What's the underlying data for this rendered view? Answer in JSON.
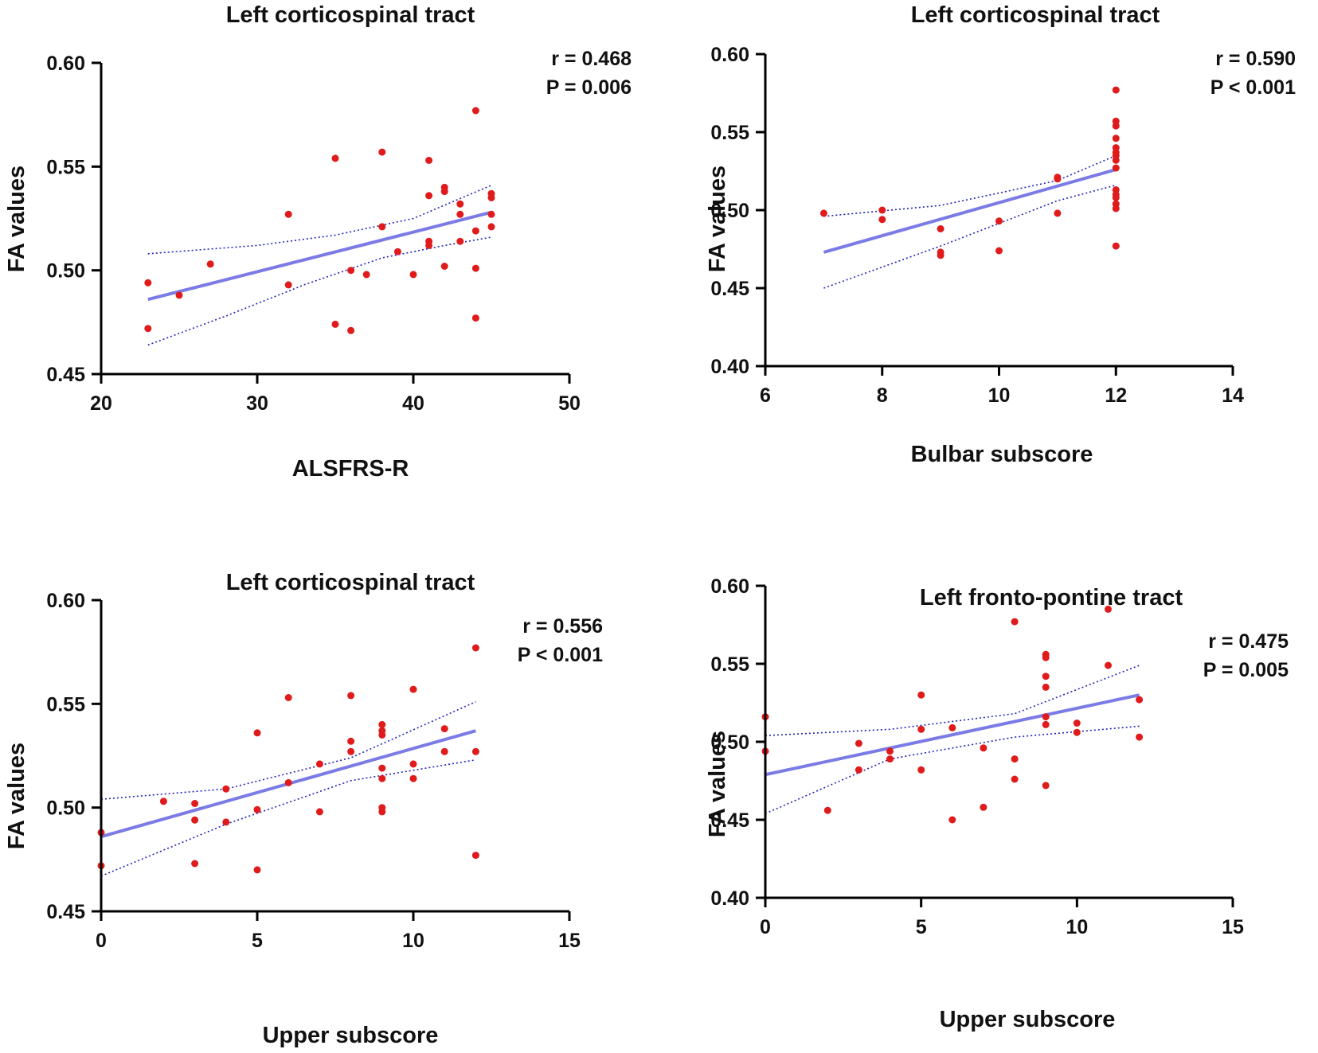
{
  "chart_data": [
    {
      "type": "scatter",
      "title": "Left corticospinal tract",
      "xlabel": "ALSFRS-R",
      "ylabel": "FA values",
      "xlim": [
        20,
        50
      ],
      "ylim": [
        0.45,
        0.6
      ],
      "xticks": [
        20,
        30,
        40,
        50
      ],
      "yticks": [
        0.45,
        0.5,
        0.55,
        0.6
      ],
      "ytick_labels": [
        "0.45",
        "0.50",
        "0.55",
        "0.60"
      ],
      "stats": [
        "r = 0.468",
        "P = 0.006"
      ],
      "points": [
        [
          23,
          0.494
        ],
        [
          23,
          0.472
        ],
        [
          25,
          0.488
        ],
        [
          27,
          0.503
        ],
        [
          32,
          0.527
        ],
        [
          32,
          0.493
        ],
        [
          35,
          0.554
        ],
        [
          35,
          0.474
        ],
        [
          36,
          0.5
        ],
        [
          36,
          0.471
        ],
        [
          37,
          0.498
        ],
        [
          38,
          0.557
        ],
        [
          38,
          0.521
        ],
        [
          39,
          0.509
        ],
        [
          40,
          0.498
        ],
        [
          41,
          0.553
        ],
        [
          41,
          0.536
        ],
        [
          41,
          0.514
        ],
        [
          41,
          0.512
        ],
        [
          42,
          0.54
        ],
        [
          42,
          0.538
        ],
        [
          42,
          0.502
        ],
        [
          43,
          0.532
        ],
        [
          43,
          0.527
        ],
        [
          43,
          0.514
        ],
        [
          44,
          0.577
        ],
        [
          44,
          0.519
        ],
        [
          44,
          0.501
        ],
        [
          44,
          0.477
        ],
        [
          45,
          0.537
        ],
        [
          45,
          0.535
        ],
        [
          45,
          0.527
        ],
        [
          45,
          0.521
        ]
      ],
      "fit": [
        [
          23,
          0.486
        ],
        [
          45,
          0.528
        ]
      ],
      "ci_upper": [
        [
          23,
          0.508
        ],
        [
          30,
          0.512
        ],
        [
          35,
          0.517
        ],
        [
          40,
          0.525
        ],
        [
          45,
          0.541
        ]
      ],
      "ci_lower": [
        [
          23,
          0.464
        ],
        [
          28,
          0.478
        ],
        [
          33,
          0.493
        ],
        [
          38,
          0.506
        ],
        [
          42,
          0.512
        ],
        [
          45,
          0.516
        ]
      ]
    },
    {
      "type": "scatter",
      "title": "Left corticospinal tract",
      "xlabel": "Bulbar subscore",
      "ylabel": "FA values",
      "xlim": [
        6,
        14
      ],
      "ylim": [
        0.4,
        0.6
      ],
      "xticks": [
        6,
        8,
        10,
        12,
        14
      ],
      "yticks": [
        0.4,
        0.45,
        0.5,
        0.55,
        0.6
      ],
      "ytick_labels": [
        "0.40",
        "0.45",
        "0.50",
        "0.55",
        "0.60"
      ],
      "stats": [
        "r = 0.590",
        "P < 0.001"
      ],
      "points": [
        [
          7,
          0.498
        ],
        [
          8,
          0.5
        ],
        [
          8,
          0.494
        ],
        [
          9,
          0.488
        ],
        [
          9,
          0.473
        ],
        [
          9,
          0.471
        ],
        [
          10,
          0.493
        ],
        [
          10,
          0.474
        ],
        [
          11,
          0.521
        ],
        [
          11,
          0.52
        ],
        [
          11,
          0.498
        ],
        [
          12,
          0.577
        ],
        [
          12,
          0.557
        ],
        [
          12,
          0.554
        ],
        [
          12,
          0.546
        ],
        [
          12,
          0.54
        ],
        [
          12,
          0.537
        ],
        [
          12,
          0.535
        ],
        [
          12,
          0.532
        ],
        [
          12,
          0.527
        ],
        [
          12,
          0.513
        ],
        [
          12,
          0.51
        ],
        [
          12,
          0.508
        ],
        [
          12,
          0.504
        ],
        [
          12,
          0.501
        ],
        [
          12,
          0.477
        ]
      ],
      "fit": [
        [
          7,
          0.473
        ],
        [
          12,
          0.526
        ]
      ],
      "ci_upper": [
        [
          7,
          0.496
        ],
        [
          9,
          0.503
        ],
        [
          11,
          0.519
        ],
        [
          12,
          0.535
        ]
      ],
      "ci_lower": [
        [
          7,
          0.45
        ],
        [
          9,
          0.477
        ],
        [
          11,
          0.506
        ],
        [
          12,
          0.516
        ]
      ]
    },
    {
      "type": "scatter",
      "title": "Left corticospinal tract",
      "xlabel": "Upper subscore",
      "ylabel": "FA values",
      "xlim": [
        0,
        15
      ],
      "ylim": [
        0.45,
        0.6
      ],
      "xticks": [
        0,
        5,
        10,
        15
      ],
      "yticks": [
        0.45,
        0.5,
        0.55,
        0.6
      ],
      "ytick_labels": [
        "0.45",
        "0.50",
        "0.55",
        "0.60"
      ],
      "stats": [
        "r = 0.556",
        "P < 0.001"
      ],
      "points": [
        [
          0,
          0.488
        ],
        [
          0,
          0.472
        ],
        [
          2,
          0.503
        ],
        [
          3,
          0.502
        ],
        [
          3,
          0.494
        ],
        [
          3,
          0.473
        ],
        [
          4,
          0.509
        ],
        [
          4,
          0.493
        ],
        [
          5,
          0.536
        ],
        [
          5,
          0.499
        ],
        [
          5,
          0.47
        ],
        [
          6,
          0.553
        ],
        [
          6,
          0.512
        ],
        [
          7,
          0.521
        ],
        [
          7,
          0.498
        ],
        [
          8,
          0.554
        ],
        [
          8,
          0.532
        ],
        [
          8,
          0.527
        ],
        [
          9,
          0.54
        ],
        [
          9,
          0.537
        ],
        [
          9,
          0.535
        ],
        [
          9,
          0.519
        ],
        [
          9,
          0.514
        ],
        [
          9,
          0.5
        ],
        [
          9,
          0.498
        ],
        [
          10,
          0.557
        ],
        [
          10,
          0.521
        ],
        [
          10,
          0.514
        ],
        [
          11,
          0.538
        ],
        [
          11,
          0.527
        ],
        [
          12,
          0.577
        ],
        [
          12,
          0.527
        ],
        [
          12,
          0.477
        ]
      ],
      "fit": [
        [
          0,
          0.486
        ],
        [
          12,
          0.537
        ]
      ],
      "ci_upper": [
        [
          0,
          0.504
        ],
        [
          4,
          0.509
        ],
        [
          8,
          0.524
        ],
        [
          12,
          0.551
        ]
      ],
      "ci_lower": [
        [
          0,
          0.467
        ],
        [
          4,
          0.492
        ],
        [
          8,
          0.513
        ],
        [
          12,
          0.523
        ]
      ]
    },
    {
      "type": "scatter",
      "title": "Left fronto-pontine tract",
      "xlabel": "Upper subscore",
      "ylabel": "FA values",
      "xlim": [
        0,
        15
      ],
      "ylim": [
        0.4,
        0.6
      ],
      "xticks": [
        0,
        5,
        10,
        15
      ],
      "yticks": [
        0.4,
        0.45,
        0.5,
        0.55,
        0.6
      ],
      "ytick_labels": [
        "0.40",
        "0.45",
        "0.50",
        "0.55",
        "0.60"
      ],
      "stats": [
        "r = 0.475",
        "P = 0.005"
      ],
      "points": [
        [
          0,
          0.516
        ],
        [
          0,
          0.494
        ],
        [
          2,
          0.456
        ],
        [
          3,
          0.499
        ],
        [
          3,
          0.482
        ],
        [
          4,
          0.494
        ],
        [
          4,
          0.489
        ],
        [
          5,
          0.53
        ],
        [
          5,
          0.508
        ],
        [
          5,
          0.482
        ],
        [
          6,
          0.509
        ],
        [
          6,
          0.45
        ],
        [
          7,
          0.496
        ],
        [
          7,
          0.458
        ],
        [
          8,
          0.577
        ],
        [
          8,
          0.489
        ],
        [
          8,
          0.476
        ],
        [
          9,
          0.556
        ],
        [
          9,
          0.554
        ],
        [
          9,
          0.542
        ],
        [
          9,
          0.535
        ],
        [
          9,
          0.516
        ],
        [
          9,
          0.511
        ],
        [
          9,
          0.472
        ],
        [
          10,
          0.512
        ],
        [
          10,
          0.506
        ],
        [
          11,
          0.585
        ],
        [
          11,
          0.549
        ],
        [
          12,
          0.527
        ],
        [
          12,
          0.503
        ]
      ],
      "fit": [
        [
          0,
          0.479
        ],
        [
          12,
          0.53
        ]
      ],
      "ci_upper": [
        [
          0,
          0.504
        ],
        [
          4,
          0.508
        ],
        [
          8,
          0.518
        ],
        [
          12,
          0.549
        ]
      ],
      "ci_lower": [
        [
          0,
          0.454
        ],
        [
          4,
          0.489
        ],
        [
          8,
          0.503
        ],
        [
          12,
          0.51
        ]
      ]
    }
  ]
}
